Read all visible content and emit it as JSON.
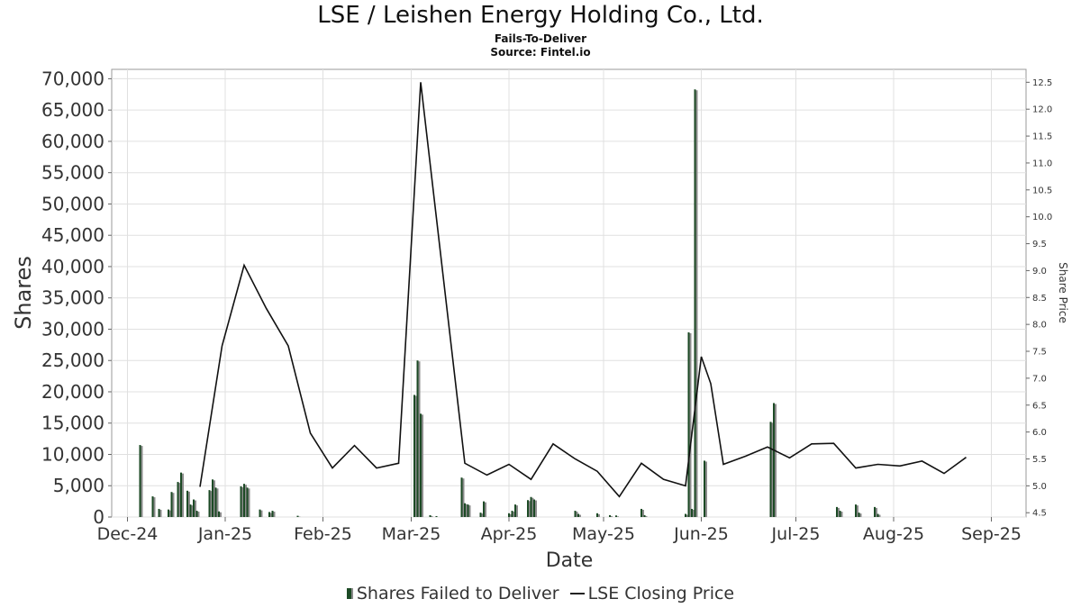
{
  "chart_data": {
    "type": "bar",
    "title": "LSE / Leishen Energy Holding Co., Ltd.",
    "subtitle": "Fails-To-Deliver",
    "source": "Source: Fintel.io",
    "xlabel": "Date",
    "ylabel": "Shares",
    "y2label": "Share Price",
    "ylim": [
      0,
      71500
    ],
    "y2lim": [
      4.42,
      12.74
    ],
    "y_ticks": [
      "0",
      "5,000",
      "10,000",
      "15,000",
      "20,000",
      "25,000",
      "30,000",
      "35,000",
      "40,000",
      "45,000",
      "50,000",
      "55,000",
      "60,000",
      "65,000",
      "70,000"
    ],
    "y_tick_values": [
      0,
      5000,
      10000,
      15000,
      20000,
      25000,
      30000,
      35000,
      40000,
      45000,
      50000,
      55000,
      60000,
      65000,
      70000
    ],
    "y2_ticks": [
      "4.5",
      "5.0",
      "5.5",
      "6.0",
      "6.5",
      "7.0",
      "7.5",
      "8.0",
      "8.5",
      "9.0",
      "9.5",
      "10.0",
      "10.5",
      "11.0",
      "11.5",
      "12.0",
      "12.5"
    ],
    "y2_tick_values": [
      4.5,
      5.0,
      5.5,
      6.0,
      6.5,
      7.0,
      7.5,
      8.0,
      8.5,
      9.0,
      9.5,
      10.0,
      10.5,
      11.0,
      11.5,
      12.0,
      12.5
    ],
    "x_range": [
      "2024-11-26",
      "2025-09-12"
    ],
    "x_ticks": [
      {
        "label": "Dec-24",
        "date": "2024-12-01"
      },
      {
        "label": "Jan-25",
        "date": "2025-01-01"
      },
      {
        "label": "Feb-25",
        "date": "2025-02-01"
      },
      {
        "label": "Mar-25",
        "date": "2025-03-01"
      },
      {
        "label": "Apr-25",
        "date": "2025-04-01"
      },
      {
        "label": "May-25",
        "date": "2025-05-01"
      },
      {
        "label": "Jun-25",
        "date": "2025-06-01"
      },
      {
        "label": "Jul-25",
        "date": "2025-07-01"
      },
      {
        "label": "Aug-25",
        "date": "2025-08-01"
      },
      {
        "label": "Sep-25",
        "date": "2025-09-01"
      }
    ],
    "grid": true,
    "legend_position": "bottom",
    "series": [
      {
        "name": "Shares Failed to Deliver",
        "type": "bar",
        "color": "#1c4a25",
        "points": [
          {
            "date": "2024-12-05",
            "value": 11500
          },
          {
            "date": "2024-12-09",
            "value": 3300
          },
          {
            "date": "2024-12-11",
            "value": 1300
          },
          {
            "date": "2024-12-14",
            "value": 1200
          },
          {
            "date": "2024-12-15",
            "value": 4000
          },
          {
            "date": "2024-12-17",
            "value": 5600
          },
          {
            "date": "2024-12-18",
            "value": 7100
          },
          {
            "date": "2024-12-20",
            "value": 4200
          },
          {
            "date": "2024-12-21",
            "value": 2000
          },
          {
            "date": "2024-12-22",
            "value": 2800
          },
          {
            "date": "2024-12-23",
            "value": 1000
          },
          {
            "date": "2024-12-27",
            "value": 4300
          },
          {
            "date": "2024-12-28",
            "value": 6000
          },
          {
            "date": "2024-12-29",
            "value": 4700
          },
          {
            "date": "2024-12-30",
            "value": 900
          },
          {
            "date": "2025-01-06",
            "value": 4900
          },
          {
            "date": "2025-01-07",
            "value": 5300
          },
          {
            "date": "2025-01-08",
            "value": 4700
          },
          {
            "date": "2025-01-12",
            "value": 1200
          },
          {
            "date": "2025-01-15",
            "value": 800
          },
          {
            "date": "2025-01-16",
            "value": 1000
          },
          {
            "date": "2025-01-24",
            "value": 200
          },
          {
            "date": "2025-03-02",
            "value": 19500
          },
          {
            "date": "2025-03-03",
            "value": 25000
          },
          {
            "date": "2025-03-04",
            "value": 16500
          },
          {
            "date": "2025-03-07",
            "value": 300
          },
          {
            "date": "2025-03-09",
            "value": 150
          },
          {
            "date": "2025-03-17",
            "value": 6300
          },
          {
            "date": "2025-03-18",
            "value": 2200
          },
          {
            "date": "2025-03-19",
            "value": 2000
          },
          {
            "date": "2025-03-23",
            "value": 700
          },
          {
            "date": "2025-03-24",
            "value": 2500
          },
          {
            "date": "2025-04-01",
            "value": 600
          },
          {
            "date": "2025-04-02",
            "value": 1000
          },
          {
            "date": "2025-04-03",
            "value": 2000
          },
          {
            "date": "2025-04-07",
            "value": 2700
          },
          {
            "date": "2025-04-08",
            "value": 3200
          },
          {
            "date": "2025-04-09",
            "value": 2800
          },
          {
            "date": "2025-04-22",
            "value": 1000
          },
          {
            "date": "2025-04-23",
            "value": 500
          },
          {
            "date": "2025-04-29",
            "value": 600
          },
          {
            "date": "2025-05-03",
            "value": 300
          },
          {
            "date": "2025-05-05",
            "value": 250
          },
          {
            "date": "2025-05-13",
            "value": 1300
          },
          {
            "date": "2025-05-14",
            "value": 300
          },
          {
            "date": "2025-05-27",
            "value": 500
          },
          {
            "date": "2025-05-28",
            "value": 29500
          },
          {
            "date": "2025-05-29",
            "value": 1300
          },
          {
            "date": "2025-05-30",
            "value": 68300
          },
          {
            "date": "2025-06-02",
            "value": 9000
          },
          {
            "date": "2025-06-23",
            "value": 15200
          },
          {
            "date": "2025-06-24",
            "value": 18200
          },
          {
            "date": "2025-07-14",
            "value": 1600
          },
          {
            "date": "2025-07-15",
            "value": 1000
          },
          {
            "date": "2025-07-20",
            "value": 2000
          },
          {
            "date": "2025-07-21",
            "value": 700
          },
          {
            "date": "2025-07-26",
            "value": 1600
          },
          {
            "date": "2025-07-27",
            "value": 500
          }
        ]
      },
      {
        "name": "LSE Closing Price",
        "type": "line",
        "color": "#111111",
        "points": [
          {
            "date": "2024-12-24",
            "value": 4.98
          },
          {
            "date": "2024-12-31",
            "value": 7.6
          },
          {
            "date": "2025-01-07",
            "value": 9.1
          },
          {
            "date": "2025-01-14",
            "value": 8.3
          },
          {
            "date": "2025-01-21",
            "value": 7.6
          },
          {
            "date": "2025-01-28",
            "value": 5.98
          },
          {
            "date": "2025-02-04",
            "value": 5.33
          },
          {
            "date": "2025-02-11",
            "value": 5.75
          },
          {
            "date": "2025-02-18",
            "value": 5.33
          },
          {
            "date": "2025-02-25",
            "value": 5.42
          },
          {
            "date": "2025-03-04",
            "value": 12.5
          },
          {
            "date": "2025-03-18",
            "value": 5.42
          },
          {
            "date": "2025-03-25",
            "value": 5.2
          },
          {
            "date": "2025-04-01",
            "value": 5.4
          },
          {
            "date": "2025-04-08",
            "value": 5.12
          },
          {
            "date": "2025-04-15",
            "value": 5.78
          },
          {
            "date": "2025-04-22",
            "value": 5.5
          },
          {
            "date": "2025-04-29",
            "value": 5.27
          },
          {
            "date": "2025-05-06",
            "value": 4.8
          },
          {
            "date": "2025-05-13",
            "value": 5.42
          },
          {
            "date": "2025-05-20",
            "value": 5.12
          },
          {
            "date": "2025-05-27",
            "value": 5.0
          },
          {
            "date": "2025-06-01",
            "value": 7.4
          },
          {
            "date": "2025-06-04",
            "value": 6.9
          },
          {
            "date": "2025-06-08",
            "value": 5.4
          },
          {
            "date": "2025-06-15",
            "value": 5.55
          },
          {
            "date": "2025-06-22",
            "value": 5.72
          },
          {
            "date": "2025-06-29",
            "value": 5.52
          },
          {
            "date": "2025-07-06",
            "value": 5.78
          },
          {
            "date": "2025-07-13",
            "value": 5.79
          },
          {
            "date": "2025-07-20",
            "value": 5.33
          },
          {
            "date": "2025-07-27",
            "value": 5.4
          },
          {
            "date": "2025-08-03",
            "value": 5.37
          },
          {
            "date": "2025-08-10",
            "value": 5.46
          },
          {
            "date": "2025-08-17",
            "value": 5.23
          },
          {
            "date": "2025-08-24",
            "value": 5.53
          }
        ]
      }
    ]
  }
}
